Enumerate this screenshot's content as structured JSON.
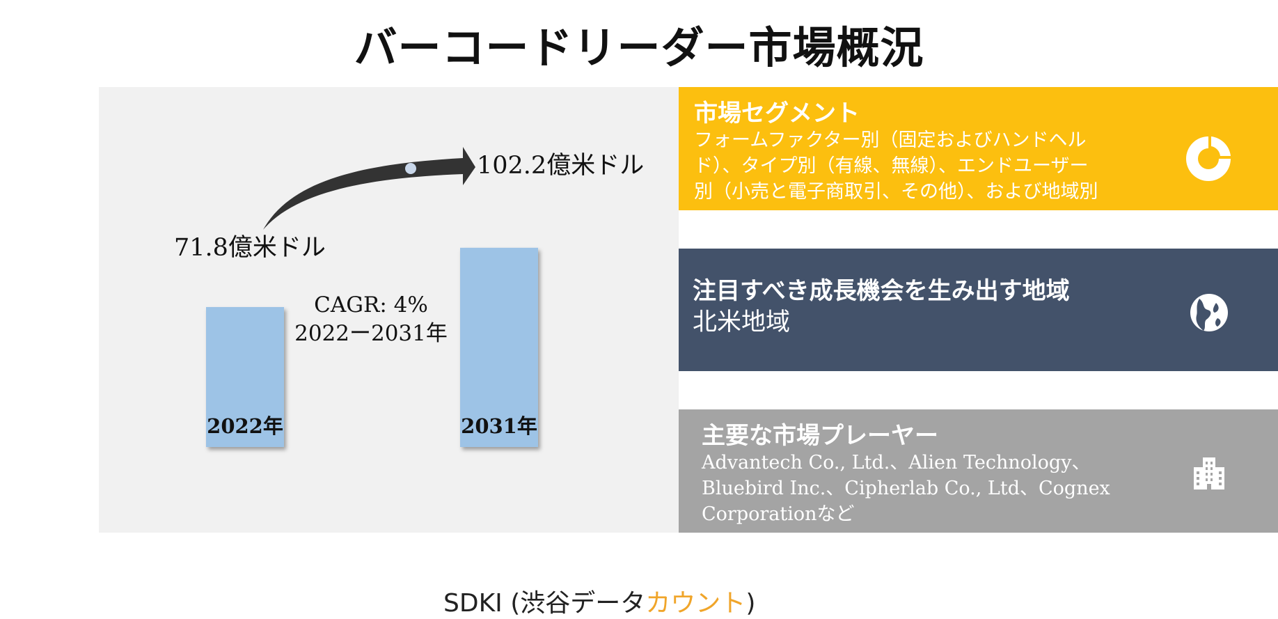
{
  "page": {
    "title": "バーコードリーダー市場概況"
  },
  "chart_data": {
    "type": "bar",
    "categories": [
      "2022年",
      "2031年"
    ],
    "values": [
      71.8,
      102.2
    ],
    "value_labels": [
      "71.8億米ドル",
      "102.2億米ドル"
    ],
    "cagr_label": "CAGR: 4%",
    "period_label": "2022ー2031年",
    "colors": {
      "bar": "#9dc3e6",
      "arrow": "#333333",
      "panel": "#f1f1f1"
    }
  },
  "source": {
    "prefix": "SDKI (渋谷データ",
    "accent": "カウント",
    "suffix": ")"
  },
  "segments": {
    "heading": "市場セグメント",
    "lines": [
      "フォームファクター別（固定およびハンドヘル",
      "ド）、タイプ別（有線、無線）、エンドユーザー",
      "別（小売と電子商取引、その他）、および地域別"
    ],
    "icon": "donut-chart-icon",
    "color": "#fcbf0f"
  },
  "region": {
    "heading": "注目すべき成長機会を生み出す地域",
    "value": "北米地域",
    "icon": "globe-icon",
    "color": "#43526a"
  },
  "players": {
    "heading": "主要な市場プレーヤー",
    "lines": [
      "Advantech Co., Ltd.、Alien Technology、",
      "Bluebird Inc.、Cipherlab Co., Ltd、Cognex",
      "Corporationなど"
    ],
    "icon": "building-icon",
    "color": "#a4a4a4"
  }
}
